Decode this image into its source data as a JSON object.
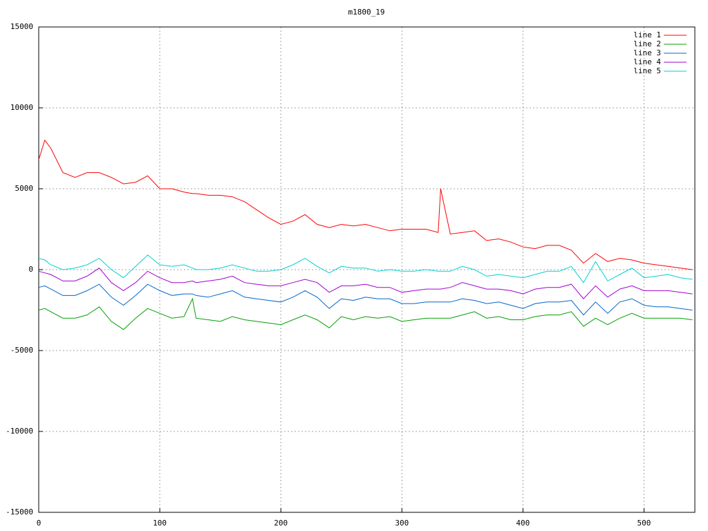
{
  "chart_data": {
    "type": "line",
    "title": "m1800_19",
    "x": [
      0,
      5,
      10,
      20,
      30,
      40,
      50,
      60,
      70,
      80,
      90,
      100,
      110,
      120,
      127,
      130,
      140,
      150,
      160,
      170,
      180,
      190,
      200,
      210,
      220,
      230,
      240,
      250,
      260,
      270,
      280,
      290,
      300,
      310,
      320,
      330,
      332,
      340,
      350,
      360,
      370,
      380,
      390,
      400,
      410,
      420,
      430,
      440,
      450,
      460,
      470,
      480,
      490,
      500,
      510,
      520,
      530,
      540
    ],
    "series": [
      {
        "name": "line 1",
        "color": "#ff0000",
        "values": [
          6800,
          8000,
          7500,
          6000,
          5700,
          6000,
          6000,
          5700,
          5300,
          5400,
          5800,
          5000,
          5000,
          4800,
          4700,
          4700,
          4600,
          4600,
          4500,
          4200,
          3700,
          3200,
          2800,
          3000,
          3400,
          2800,
          2600,
          2800,
          2700,
          2800,
          2600,
          2400,
          2500,
          2500,
          2500,
          2300,
          5000,
          2200,
          2300,
          2400,
          1800,
          1900,
          1700,
          1400,
          1300,
          1500,
          1500,
          1200,
          400,
          1000,
          500,
          700,
          600,
          400,
          300,
          200,
          100,
          0
        ]
      },
      {
        "name": "line 2",
        "color": "#00a000",
        "values": [
          -2500,
          -2400,
          -2600,
          -3000,
          -3000,
          -2800,
          -2300,
          -3200,
          -3700,
          -3000,
          -2400,
          -2700,
          -3000,
          -2900,
          -1800,
          -3000,
          -3100,
          -3200,
          -2900,
          -3100,
          -3200,
          -3300,
          -3400,
          -3100,
          -2800,
          -3100,
          -3600,
          -2900,
          -3100,
          -2900,
          -3000,
          -2900,
          -3200,
          -3100,
          -3000,
          -3000,
          -3000,
          -3000,
          -2800,
          -2600,
          -3000,
          -2900,
          -3100,
          -3100,
          -2900,
          -2800,
          -2800,
          -2600,
          -3500,
          -3000,
          -3400,
          -3000,
          -2700,
          -3000,
          -3000,
          -3000,
          -3000,
          -3100
        ]
      },
      {
        "name": "line 3",
        "color": "#0066cc",
        "values": [
          -1100,
          -1000,
          -1200,
          -1600,
          -1600,
          -1300,
          -900,
          -1700,
          -2200,
          -1600,
          -900,
          -1300,
          -1600,
          -1500,
          -1500,
          -1600,
          -1700,
          -1500,
          -1300,
          -1700,
          -1800,
          -1900,
          -2000,
          -1700,
          -1300,
          -1700,
          -2400,
          -1800,
          -1900,
          -1700,
          -1800,
          -1800,
          -2100,
          -2100,
          -2000,
          -2000,
          -2000,
          -2000,
          -1800,
          -1900,
          -2100,
          -2000,
          -2200,
          -2400,
          -2100,
          -2000,
          -2000,
          -1900,
          -2800,
          -2000,
          -2700,
          -2000,
          -1800,
          -2200,
          -2300,
          -2300,
          -2400,
          -2500
        ]
      },
      {
        "name": "line 4",
        "color": "#a000d0",
        "values": [
          -100,
          -200,
          -300,
          -700,
          -700,
          -400,
          100,
          -800,
          -1300,
          -800,
          -100,
          -500,
          -800,
          -800,
          -700,
          -800,
          -700,
          -600,
          -400,
          -800,
          -900,
          -1000,
          -1000,
          -800,
          -600,
          -800,
          -1400,
          -1000,
          -1000,
          -900,
          -1100,
          -1100,
          -1400,
          -1300,
          -1200,
          -1200,
          -1200,
          -1100,
          -800,
          -1000,
          -1200,
          -1200,
          -1300,
          -1500,
          -1200,
          -1100,
          -1100,
          -900,
          -1800,
          -1000,
          -1700,
          -1200,
          -1000,
          -1300,
          -1300,
          -1300,
          -1400,
          -1500
        ]
      },
      {
        "name": "line 5",
        "color": "#00d0d0",
        "values": [
          700,
          600,
          300,
          0,
          100,
          300,
          700,
          0,
          -500,
          200,
          900,
          300,
          200,
          300,
          100,
          0,
          0,
          100,
          300,
          100,
          -100,
          -100,
          0,
          300,
          700,
          200,
          -200,
          200,
          100,
          100,
          -100,
          0,
          -100,
          -100,
          0,
          -100,
          -100,
          -100,
          200,
          0,
          -400,
          -300,
          -400,
          -500,
          -300,
          -100,
          -100,
          200,
          -800,
          500,
          -700,
          -300,
          100,
          -500,
          -400,
          -300,
          -500,
          -600
        ]
      }
    ],
    "xlim": [
      0,
      542
    ],
    "ylim": [
      -15000,
      15000
    ],
    "xticks": [
      0,
      100,
      200,
      300,
      400,
      500
    ],
    "yticks": [
      -15000,
      -10000,
      -5000,
      0,
      5000,
      10000,
      15000
    ],
    "grid": true,
    "legend": "top-right"
  }
}
